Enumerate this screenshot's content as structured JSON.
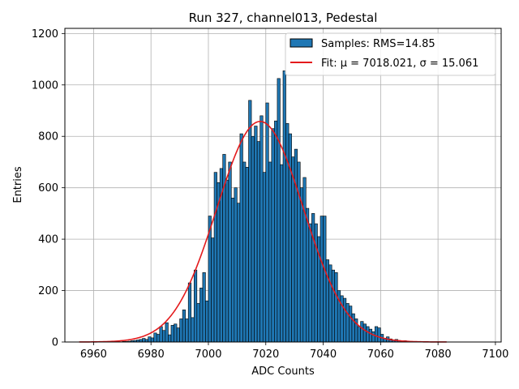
{
  "chart_data": {
    "type": "bar",
    "title": "Run 327, channel013, Pedestal",
    "xlabel": "ADC Counts",
    "ylabel": "Entries",
    "xlim": [
      6950,
      7102
    ],
    "ylim": [
      0,
      1220
    ],
    "xticks": [
      6960,
      6980,
      7000,
      7020,
      7040,
      7060,
      7080,
      7100
    ],
    "yticks": [
      0,
      200,
      400,
      600,
      800,
      1000,
      1200
    ],
    "grid": true,
    "legend_position": "top-right",
    "bar_color": "#1f77b4",
    "fit_color": "#e41a1c",
    "legend": {
      "samples_label": "Samples: RMS=14.85",
      "fit_label": "Fit: μ = 7018.021, σ = 15.061"
    },
    "histogram": {
      "bin_start": 6955,
      "bin_width": 1,
      "counts": [
        0,
        0,
        0,
        0,
        0,
        0,
        0,
        0,
        0,
        0,
        0,
        0,
        0,
        0,
        0,
        2,
        2,
        3,
        5,
        6,
        8,
        10,
        14,
        10,
        20,
        16,
        35,
        30,
        60,
        45,
        75,
        28,
        65,
        70,
        55,
        90,
        125,
        90,
        230,
        95,
        280,
        150,
        210,
        270,
        160,
        490,
        405,
        660,
        620,
        675,
        730,
        630,
        700,
        560,
        600,
        540,
        810,
        700,
        680,
        940,
        800,
        840,
        780,
        880,
        660,
        930,
        700,
        830,
        860,
        1025,
        690,
        1055,
        850,
        810,
        720,
        750,
        700,
        600,
        640,
        520,
        460,
        500,
        460,
        410,
        490,
        490,
        320,
        300,
        280,
        270,
        200,
        180,
        170,
        150,
        140,
        110,
        90,
        60,
        80,
        70,
        60,
        50,
        40,
        60,
        55,
        30,
        15,
        20,
        12,
        8,
        10,
        6,
        4,
        5,
        3,
        2,
        2,
        1,
        1
      ]
    },
    "fit": {
      "mu": 7018.021,
      "sigma": 15.061,
      "amplitude": 858,
      "x_range": [
        6955,
        7083
      ]
    }
  }
}
